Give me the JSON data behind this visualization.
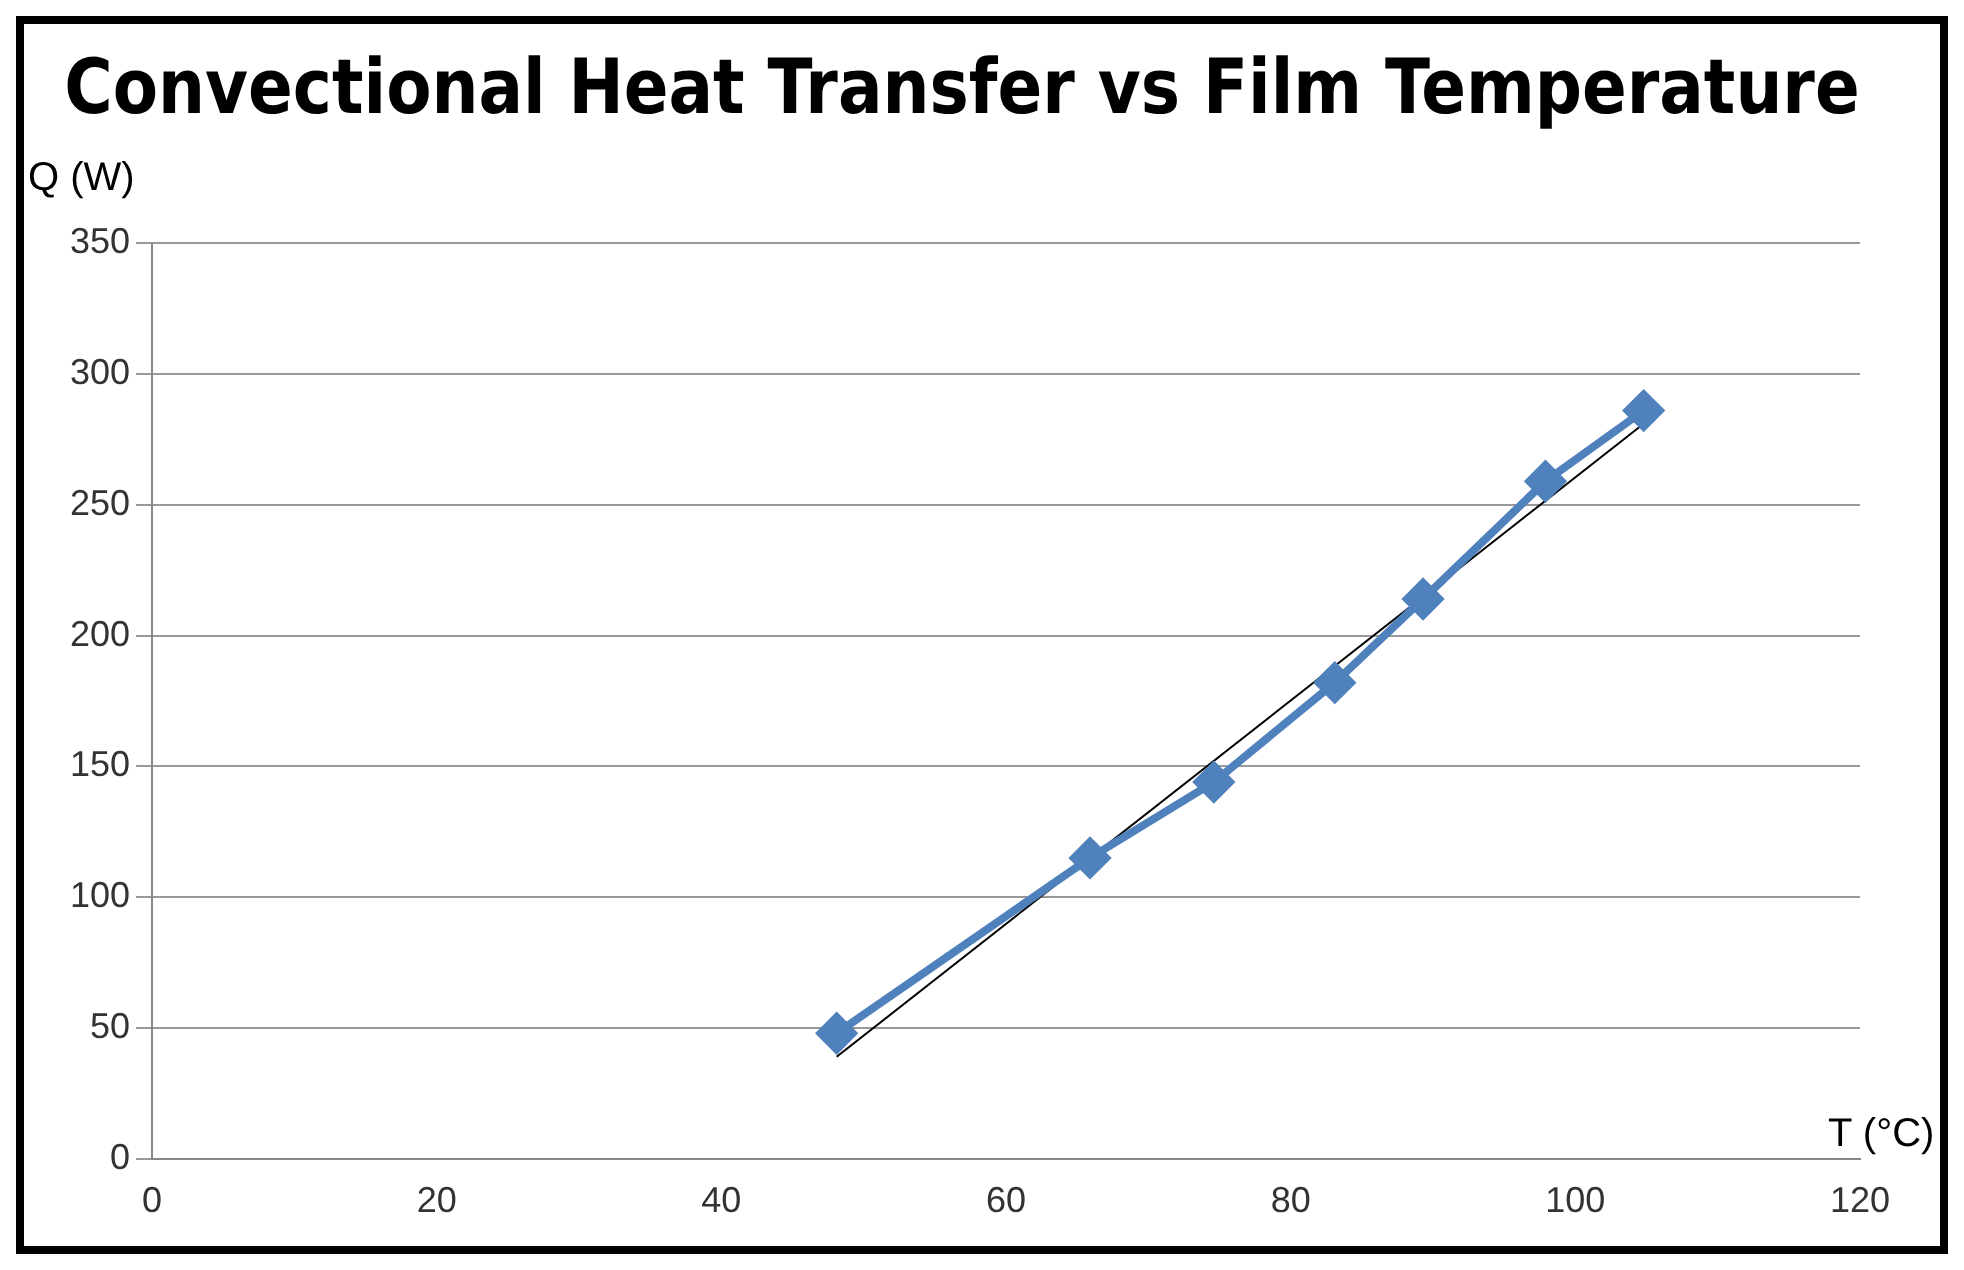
{
  "chart_data": {
    "type": "line",
    "title": "Convectional Heat Transfer vs Film Temperature",
    "xlabel": "T (°C)",
    "ylabel": "Q (W)",
    "xlim": [
      0,
      120
    ],
    "xticks": [
      0,
      20,
      40,
      60,
      80,
      100,
      120
    ],
    "ylim": [
      0,
      350
    ],
    "yticks": [
      0,
      50,
      100,
      150,
      200,
      250,
      300,
      350
    ],
    "grid": "y",
    "legend": false,
    "marker": "diamond",
    "line_style": "solid",
    "series": [
      {
        "color": "#4f81bd",
        "x": [
          48.1,
          65.9,
          74.6,
          83.1,
          89.3,
          97.9,
          104.8
        ],
        "values": [
          48,
          115,
          144,
          182,
          214,
          259,
          286
        ]
      },
      {
        "type": "line",
        "marker": "none",
        "color": "#000000",
        "x": [
          48.1,
          104.8
        ],
        "values": [
          39,
          281
        ]
      }
    ]
  }
}
